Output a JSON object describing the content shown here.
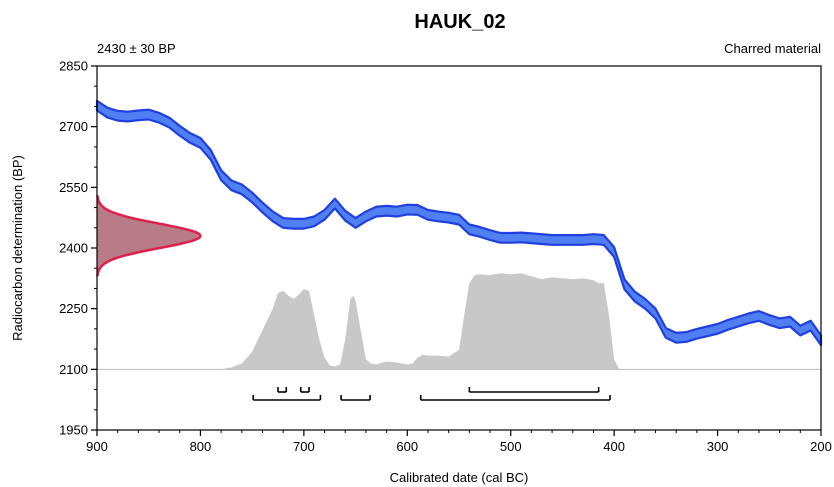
{
  "chart_data": {
    "type": "area",
    "title": "HAUK_02",
    "subtitle_left": "2430 ± 30 BP",
    "subtitle_right": "Charred material",
    "xlabel": "Calibrated date (cal BC)",
    "ylabel": "Radiocarbon determination (BP)",
    "xlim": [
      900,
      200
    ],
    "ylim": [
      1950,
      2850
    ],
    "x_ticks": [
      900,
      800,
      700,
      600,
      500,
      400,
      300,
      200
    ],
    "y_ticks": [
      1950,
      2100,
      2250,
      2400,
      2550,
      2700,
      2850
    ],
    "x_tick_labels": [
      "900",
      "800",
      "700",
      "600",
      "500",
      "400",
      "300",
      "200"
    ],
    "y_tick_labels": [
      "1950",
      "2100",
      "2250",
      "2400",
      "2550",
      "2700",
      "2850"
    ],
    "calibration_curve_color": "#1f3fe0",
    "calibration_curve_fill": "#4f7ff0",
    "radiocarbon_color": "#e0204a",
    "radiocarbon_fill": "#b87b88",
    "posterior_fill": "#c8c8c8",
    "calibration_curve": {
      "x": [
        900,
        890,
        880,
        870,
        860,
        850,
        840,
        830,
        820,
        810,
        800,
        790,
        780,
        770,
        760,
        750,
        740,
        730,
        720,
        710,
        700,
        690,
        680,
        670,
        660,
        650,
        640,
        630,
        620,
        610,
        600,
        590,
        580,
        570,
        560,
        550,
        540,
        530,
        520,
        510,
        500,
        490,
        480,
        470,
        460,
        450,
        440,
        430,
        420,
        410,
        400,
        390,
        380,
        370,
        360,
        350,
        340,
        330,
        320,
        310,
        300,
        290,
        280,
        270,
        260,
        250,
        240,
        230,
        220,
        210,
        200
      ],
      "y": [
        2752,
        2735,
        2727,
        2725,
        2728,
        2730,
        2722,
        2710,
        2690,
        2672,
        2660,
        2630,
        2580,
        2555,
        2545,
        2525,
        2500,
        2478,
        2462,
        2460,
        2460,
        2466,
        2482,
        2510,
        2480,
        2462,
        2478,
        2490,
        2492,
        2490,
        2495,
        2494,
        2482,
        2478,
        2475,
        2470,
        2446,
        2440,
        2432,
        2425,
        2425,
        2426,
        2424,
        2422,
        2420,
        2420,
        2420,
        2420,
        2422,
        2420,
        2390,
        2310,
        2280,
        2262,
        2238,
        2190,
        2178,
        2180,
        2188,
        2194,
        2200,
        2210,
        2218,
        2226,
        2232,
        2222,
        2214,
        2218,
        2196,
        2208,
        2172
      ],
      "band_width": 24
    },
    "radiocarbon_distribution": {
      "mean": 2430,
      "sigma": 30,
      "y_range": [
        2330,
        2530
      ],
      "x_peak": 800
    },
    "posterior_distribution": {
      "x": [
        900,
        780,
        770,
        760,
        750,
        740,
        730,
        725,
        720,
        715,
        710,
        705,
        700,
        695,
        690,
        685,
        680,
        675,
        670,
        665,
        660,
        655,
        652,
        650,
        645,
        640,
        635,
        630,
        620,
        610,
        600,
        595,
        590,
        585,
        580,
        570,
        560,
        550,
        545,
        540,
        535,
        530,
        520,
        510,
        500,
        490,
        480,
        470,
        460,
        450,
        440,
        430,
        420,
        415,
        410,
        405,
        400,
        395,
        200
      ],
      "y": [
        0,
        0,
        0.02,
        0.06,
        0.18,
        0.4,
        0.62,
        0.78,
        0.8,
        0.75,
        0.72,
        0.76,
        0.82,
        0.8,
        0.55,
        0.3,
        0.12,
        0.04,
        0.03,
        0.05,
        0.3,
        0.72,
        0.75,
        0.7,
        0.4,
        0.1,
        0.06,
        0.05,
        0.08,
        0.07,
        0.05,
        0.06,
        0.12,
        0.15,
        0.14,
        0.14,
        0.13,
        0.2,
        0.55,
        0.88,
        0.96,
        0.97,
        0.96,
        0.98,
        0.97,
        0.98,
        0.95,
        0.92,
        0.94,
        0.93,
        0.92,
        0.93,
        0.91,
        0.88,
        0.88,
        0.55,
        0.1,
        0.0,
        0
      ]
    },
    "hpd_ranges": {
      "range_68": [
        [
          725,
          717
        ],
        [
          703,
          695
        ],
        [
          540,
          415
        ]
      ],
      "range_95": [
        [
          749,
          684
        ],
        [
          664,
          636
        ],
        [
          587,
          404
        ]
      ]
    }
  }
}
